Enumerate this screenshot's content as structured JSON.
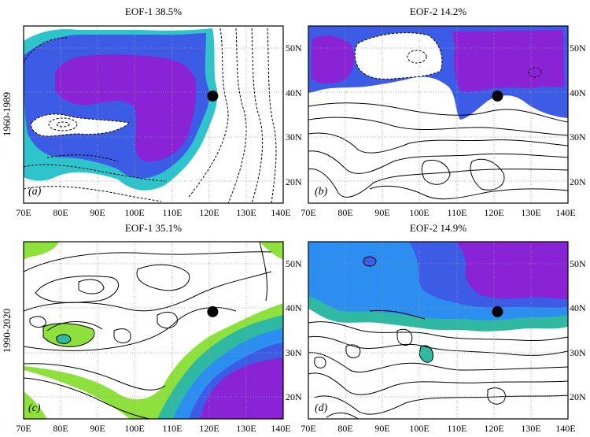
{
  "row_labels": [
    "1960-1989",
    "1990-2020"
  ],
  "panels": [
    {
      "id": "a",
      "title": "EOF-1    38.5%",
      "label": "(a)",
      "palette": "cool",
      "xlabels": [
        "70E",
        "80E",
        "90E",
        "100E",
        "110E",
        "120E",
        "130E",
        "140E"
      ],
      "ylabels": [
        "20N",
        "30N",
        "40N",
        "50N"
      ]
    },
    {
      "id": "b",
      "title": "EOF-2  14.2%",
      "label": "(b)",
      "palette": "blue",
      "xlabels": [
        "70E",
        "80E",
        "90E",
        "100E",
        "110E",
        "120E",
        "130E",
        "140E"
      ],
      "ylabels": [
        "20N",
        "30N",
        "40N",
        "50N"
      ]
    },
    {
      "id": "c",
      "title": "EOF-1  35.1%",
      "label": "(c)",
      "palette": "greenblue",
      "xlabels": [
        "70E",
        "80E",
        "90E",
        "100E",
        "110E",
        "120E",
        "130E",
        "140E"
      ],
      "ylabels": [
        "20N",
        "30N",
        "40N",
        "50N"
      ]
    },
    {
      "id": "d",
      "title": "EOF-2  14.9%",
      "label": "(d)",
      "palette": "bluepurple",
      "xlabels": [
        "70E",
        "80E",
        "90E",
        "100E",
        "110E",
        "120E",
        "130E",
        "140E"
      ],
      "ylabels": [
        "20N",
        "30N",
        "40N",
        "50N"
      ]
    }
  ],
  "map_extent": {
    "lon": [
      70,
      140
    ],
    "lat": [
      15,
      55
    ]
  },
  "marker": {
    "lon": 121,
    "lat": 39.2,
    "color": "#000000"
  },
  "colors": {
    "cyan": "#2ec4cc",
    "blue": "#3d5ce6",
    "purple": "#8a22d6",
    "green": "#8ee03c",
    "teal": "#2fb9a2",
    "lightgreen": "#a6e868",
    "mid_blue": "#2c8ef0"
  }
}
